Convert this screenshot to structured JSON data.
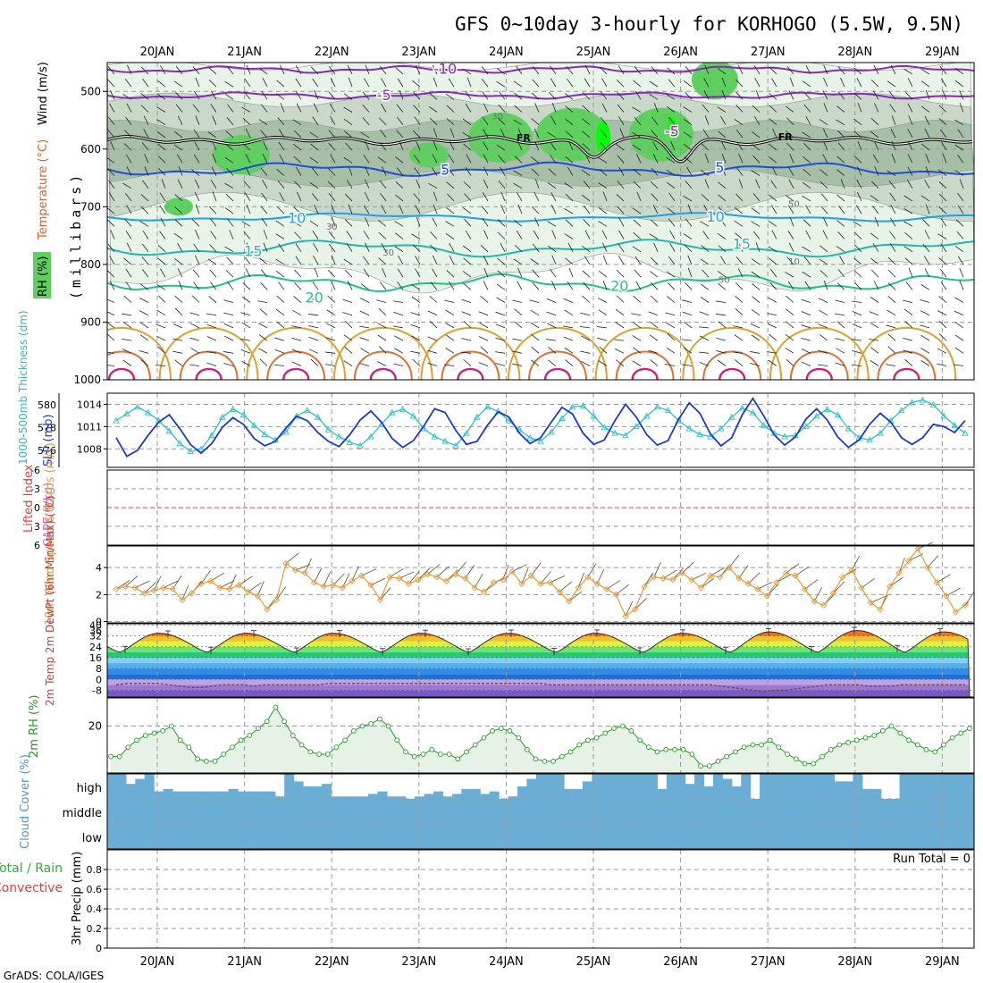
{
  "title": "GFS 0~10day 3-hourly for KORHOGO (5.5W, 9.5N)",
  "credit": "GrADS: COLA/IGES",
  "date_labels": [
    "20JAN",
    "21JAN",
    "22JAN",
    "23JAN",
    "24JAN",
    "25JAN",
    "26JAN",
    "27JAN",
    "28JAN",
    "29JAN"
  ],
  "colors": {
    "rh_light": "#e8f4e8",
    "rh_mid": "#c9d8c9",
    "rh_dark": "#9fb89f",
    "rh_green": "#5fcf5f",
    "rh_bright": "#00ff00",
    "temp_neg": "#8a2ab8",
    "temp_5": "#1f4fd8",
    "temp_10": "#1fa0e8",
    "temp_15": "#22b8b0",
    "temp_20": "#22c090",
    "temp_warm": "#e0a030",
    "temp_hot": "#e07030",
    "temp_very_hot": "#d0207a",
    "thickness": "#30c0c8",
    "slp": "#1a3ad0",
    "wind10": "#e89a3a",
    "rh2m": "#2a9a2a",
    "cloud": "#6aaed6",
    "zero_line": "#e04040"
  },
  "chart_data": [
    {
      "panel": "upper-air",
      "type": "heatmap",
      "ylabel": "(millibars)",
      "legend": [
        "Wind (m/s)",
        "Temperature (°C)",
        "RH (%)"
      ],
      "ylim": [
        1000,
        450
      ],
      "y_ticks": [
        500,
        600,
        700,
        800,
        900,
        1000
      ],
      "rh_contour_labels": [
        "30",
        "30",
        "30",
        "50",
        "50",
        "10"
      ],
      "freezing_label": "FR",
      "isotherms": [
        {
          "label": "-10",
          "y_mb": 462,
          "label_day": 3.3
        },
        {
          "label": "-5",
          "y_mb": 507,
          "label_day": 2.6
        },
        {
          "label": "5",
          "y_mb": 637,
          "label_day": 3.3
        },
        {
          "label": "5",
          "y_mb": 633,
          "label_day": 6.45
        },
        {
          "label": "-5",
          "y_mb": 570,
          "label_day": 5.9
        },
        {
          "label": "10",
          "y_mb": 720,
          "label_day": 1.6
        },
        {
          "label": "10",
          "y_mb": 718,
          "label_day": 6.4
        },
        {
          "label": "15",
          "y_mb": 778,
          "label_day": 1.1
        },
        {
          "label": "15",
          "y_mb": 765,
          "label_day": 6.7
        },
        {
          "label": "20",
          "y_mb": 858,
          "label_day": 1.8
        },
        {
          "label": "20",
          "y_mb": 838,
          "label_day": 5.3
        }
      ]
    },
    {
      "panel": "thickness-slp",
      "type": "line",
      "ylabel_left": "1000-500mb Thickness (dm)",
      "ylabel_right": "SLP (mb)",
      "ylim_left": [
        574.5,
        581
      ],
      "ylim_right": [
        1005.5,
        1015.5
      ],
      "left_ticks": [
        "576",
        "578",
        "580"
      ],
      "right_ticks": [
        "1008",
        "1011",
        "1014"
      ],
      "series": [
        {
          "name": "1000-500mb Thickness (dm)",
          "axis": "left",
          "values": [
            578.6,
            579.2,
            579.8,
            579.3,
            578.6,
            577.7,
            576.6,
            575.9,
            576.1,
            577.3,
            578.9,
            579.6,
            579.1,
            578.2,
            577.4,
            576.9,
            577.6,
            579.0,
            579.5,
            578.9,
            577.8,
            577.2,
            576.7,
            576.4,
            577.2,
            578.3,
            579.3,
            579.6,
            579.0,
            577.9,
            577.2,
            576.8,
            576.4,
            577.5,
            578.9,
            579.8,
            579.4,
            578.6,
            577.8,
            577.1,
            576.8,
            577.6,
            578.8,
            579.8,
            579.9,
            579.0,
            578.0,
            577.5,
            577.3,
            578.1,
            579.0,
            579.8,
            579.5,
            578.6,
            577.9,
            577.4,
            577.2,
            577.9,
            578.9,
            579.7,
            579.3,
            578.2,
            577.5,
            577.2,
            577.3,
            578.1,
            579.0,
            579.6,
            579.1,
            577.9,
            577.1,
            576.9,
            577.5,
            578.6,
            579.5,
            580.2,
            580.4,
            580.0,
            579.0,
            578.2,
            577.5
          ]
        },
        {
          "name": "SLP (mb)",
          "axis": "right",
          "values": [
            1009.5,
            1007.0,
            1007.8,
            1009.8,
            1011.6,
            1012.6,
            1010.7,
            1008.6,
            1007.4,
            1008.7,
            1010.9,
            1012.2,
            1011.3,
            1009.4,
            1008.4,
            1009.0,
            1010.8,
            1012.4,
            1011.8,
            1010.2,
            1009.0,
            1008.3,
            1009.9,
            1011.9,
            1013.1,
            1011.6,
            1009.4,
            1008.2,
            1009.1,
            1011.1,
            1013.4,
            1012.9,
            1010.5,
            1008.6,
            1009.0,
            1011.2,
            1013.0,
            1012.3,
            1010.1,
            1008.7,
            1009.5,
            1011.6,
            1013.6,
            1012.7,
            1010.1,
            1008.6,
            1009.2,
            1011.8,
            1014.0,
            1012.3,
            1009.9,
            1008.5,
            1009.1,
            1012.0,
            1014.2,
            1012.8,
            1010.0,
            1008.4,
            1009.5,
            1012.6,
            1014.8,
            1012.5,
            1009.9,
            1008.5,
            1009.6,
            1012.0,
            1013.4,
            1011.9,
            1009.6,
            1008.2,
            1009.2,
            1011.3,
            1012.8,
            1011.6,
            1009.5,
            1008.6,
            1009.5,
            1011.3,
            1011.0,
            1010.2,
            1011.8
          ]
        }
      ]
    },
    {
      "panel": "stability",
      "type": "line",
      "ylabel_left": "Lifted Index",
      "ylabel_right": "CAPE (J/kg)",
      "ylim": [
        6,
        -6
      ],
      "ticks": [
        "-6",
        "-3",
        "0",
        "3",
        "6"
      ]
    },
    {
      "panel": "wind10m",
      "type": "line",
      "ylabel": "10m Wind Speed & Barbs (m/s)",
      "ylim": [
        -0.1,
        5.6
      ],
      "ticks": [
        "0",
        "2",
        "4"
      ],
      "series": [
        {
          "name": "10m Wind Speed",
          "values": [
            2.4,
            2.6,
            2.5,
            2.1,
            2.3,
            2.5,
            2.4,
            1.6,
            2.1,
            2.8,
            3.0,
            2.5,
            2.4,
            2.7,
            2.2,
            1.9,
            0.9,
            1.6,
            4.3,
            3.8,
            3.6,
            2.9,
            2.6,
            2.7,
            2.5,
            3.0,
            3.4,
            2.7,
            1.6,
            3.3,
            3.2,
            2.8,
            3.1,
            3.5,
            3.3,
            3.0,
            3.5,
            3.2,
            2.5,
            2.2,
            2.9,
            3.1,
            3.7,
            2.8,
            3.4,
            2.8,
            2.9,
            2.2,
            1.5,
            2.5,
            3.3,
            2.8,
            2.4,
            2.0,
            0.4,
            0.9,
            2.6,
            3.3,
            3.2,
            3.1,
            3.6,
            3.1,
            2.5,
            3.4,
            3.3,
            4.0,
            3.2,
            2.8,
            2.4,
            1.9,
            2.9,
            3.6,
            3.4,
            2.4,
            1.5,
            1.2,
            2.1,
            3.3,
            3.8,
            2.5,
            1.4,
            0.9,
            2.6,
            3.6,
            4.5,
            5.4,
            4.0,
            2.9,
            1.9,
            0.7,
            1.2
          ]
        }
      ]
    },
    {
      "panel": "temperature2m",
      "type": "area",
      "ylabel": "2m Temp 2m DewPt (6hr Min/Max) (°C)",
      "ylim": [
        -13,
        41
      ],
      "ticks": [
        "-8",
        "0",
        "8",
        "16",
        "24",
        "32",
        "40"
      ],
      "labeled_ticks": [
        "-8",
        "0",
        "8",
        "16",
        "24",
        "32",
        "36",
        "40"
      ],
      "series": [
        {
          "name": "2m Temp",
          "daily_max": [
            34,
            34,
            34,
            34,
            34,
            34,
            34,
            35,
            36,
            35
          ],
          "daily_min": [
            20,
            20,
            20,
            20,
            20,
            20,
            20,
            20,
            20,
            20
          ]
        },
        {
          "name": "2m DewPt",
          "values": [
            -4,
            -3,
            -3,
            -3,
            -3,
            -4,
            -5,
            -6,
            -6,
            -5,
            -4,
            -4,
            -4,
            -5,
            -4,
            -4,
            -4,
            -4,
            -4,
            -4,
            -3,
            -3,
            -3,
            -3,
            -3,
            -3,
            -3,
            -3,
            -3,
            -3,
            -3,
            -3,
            -3,
            -3,
            -3,
            -3,
            -3,
            -3,
            -3,
            -3,
            -3,
            -4,
            -4,
            -4,
            -4,
            -4,
            -4,
            -4,
            -4,
            -4,
            -4,
            -4,
            -4,
            -4,
            -4,
            -4,
            -4,
            -5,
            -6,
            -7,
            -8,
            -9,
            -8,
            -8,
            -7,
            -6,
            -5,
            -4,
            -4,
            -4,
            -4,
            -5,
            -5,
            -5,
            -4,
            -4,
            -4,
            -4,
            -4,
            -4,
            -4
          ]
        }
      ]
    },
    {
      "panel": "rh2m",
      "type": "area",
      "ylabel": "2m RH (%)",
      "ylim": [
        0,
        32
      ],
      "ticks": [
        "20"
      ],
      "series": [
        {
          "name": "2m RH",
          "values": [
            7,
            7,
            11,
            14,
            16,
            17,
            18,
            20,
            14,
            11,
            6,
            5,
            5,
            8,
            11,
            14,
            16,
            19,
            22,
            28,
            22,
            16,
            12,
            9,
            8,
            8,
            11,
            14,
            18,
            20,
            21,
            23,
            20,
            14,
            9,
            7,
            8,
            10,
            8,
            8,
            6,
            9,
            12,
            15,
            18,
            19,
            18,
            15,
            10,
            6,
            5,
            5,
            7,
            9,
            12,
            14,
            15,
            17,
            19,
            20,
            18,
            14,
            11,
            9,
            10,
            10,
            10,
            8,
            3,
            3,
            5,
            7,
            9,
            11,
            12,
            12,
            14,
            11,
            8,
            6,
            4,
            4,
            7,
            10,
            12,
            13,
            14,
            15,
            16,
            18,
            20,
            17,
            14,
            12,
            10,
            9,
            12,
            15,
            17,
            19
          ]
        }
      ]
    },
    {
      "panel": "cloud",
      "type": "bar",
      "ylabel": "Cloud Cover (%)",
      "levels": [
        "high",
        "middle",
        "low"
      ],
      "series": [
        {
          "name": "high",
          "values": [
            100,
            100,
            60,
            80,
            100,
            30,
            40,
            30,
            30,
            30,
            30,
            30,
            30,
            40,
            30,
            30,
            30,
            30,
            10,
            100,
            70,
            50,
            50,
            60,
            10,
            10,
            10,
            10,
            20,
            30,
            10,
            10,
            0,
            10,
            20,
            30,
            10,
            20,
            40,
            40,
            20,
            30,
            0,
            10,
            50,
            80,
            100,
            100,
            100,
            40,
            40,
            70,
            100,
            100,
            100,
            100,
            100,
            100,
            100,
            40,
            100,
            100,
            60,
            100,
            50,
            100,
            80,
            50,
            100,
            0,
            100,
            100,
            100,
            100,
            100,
            100,
            100,
            100,
            70,
            70,
            100,
            40,
            40,
            0,
            0,
            100,
            100,
            100,
            100,
            100,
            100,
            100,
            100
          ]
        },
        {
          "name": "middle",
          "values": [
            100,
            100,
            100,
            100,
            100,
            100,
            100,
            100,
            100,
            100,
            100,
            100,
            100,
            100,
            100,
            100,
            100,
            100,
            100,
            100,
            100,
            100,
            100,
            100,
            100,
            100,
            100,
            100,
            100,
            100,
            100,
            100,
            100,
            100,
            100,
            100,
            100,
            100,
            100,
            100,
            100,
            100,
            100,
            100,
            100,
            100,
            100,
            100,
            100,
            100,
            100,
            100,
            100,
            100,
            100,
            100,
            100,
            100,
            100,
            100,
            100,
            100,
            100,
            100,
            100,
            100,
            100,
            100,
            100,
            100,
            100,
            100,
            100,
            100,
            100,
            100,
            100,
            100,
            100,
            100,
            100,
            100,
            100,
            100,
            100,
            100,
            100,
            100,
            100,
            100,
            100,
            100,
            100
          ]
        },
        {
          "name": "low",
          "values": [
            100,
            100,
            100,
            100,
            100,
            100,
            100,
            100,
            100,
            100,
            100,
            100,
            100,
            100,
            100,
            100,
            100,
            100,
            100,
            100,
            100,
            100,
            100,
            100,
            100,
            100,
            100,
            100,
            100,
            100,
            100,
            100,
            100,
            100,
            100,
            100,
            100,
            100,
            100,
            100,
            100,
            100,
            100,
            100,
            100,
            100,
            100,
            100,
            100,
            100,
            100,
            100,
            100,
            100,
            100,
            100,
            100,
            100,
            100,
            100,
            100,
            100,
            100,
            100,
            100,
            100,
            100,
            100,
            100,
            100,
            100,
            100,
            100,
            100,
            100,
            100,
            100,
            100,
            100,
            100,
            100,
            100,
            100,
            100,
            100,
            100,
            100,
            100,
            100,
            100,
            100,
            100,
            100
          ]
        }
      ]
    },
    {
      "panel": "precip",
      "type": "bar",
      "ylabel": "3hr Precip (mm)",
      "side_labels": [
        "Total / Rain",
        "Convective"
      ],
      "run_total_label": "Run Total = 0",
      "ylim": [
        0,
        1.0
      ],
      "ticks": [
        "0",
        "0.2",
        "0.4",
        "0.6",
        "0.8"
      ],
      "values": []
    }
  ]
}
